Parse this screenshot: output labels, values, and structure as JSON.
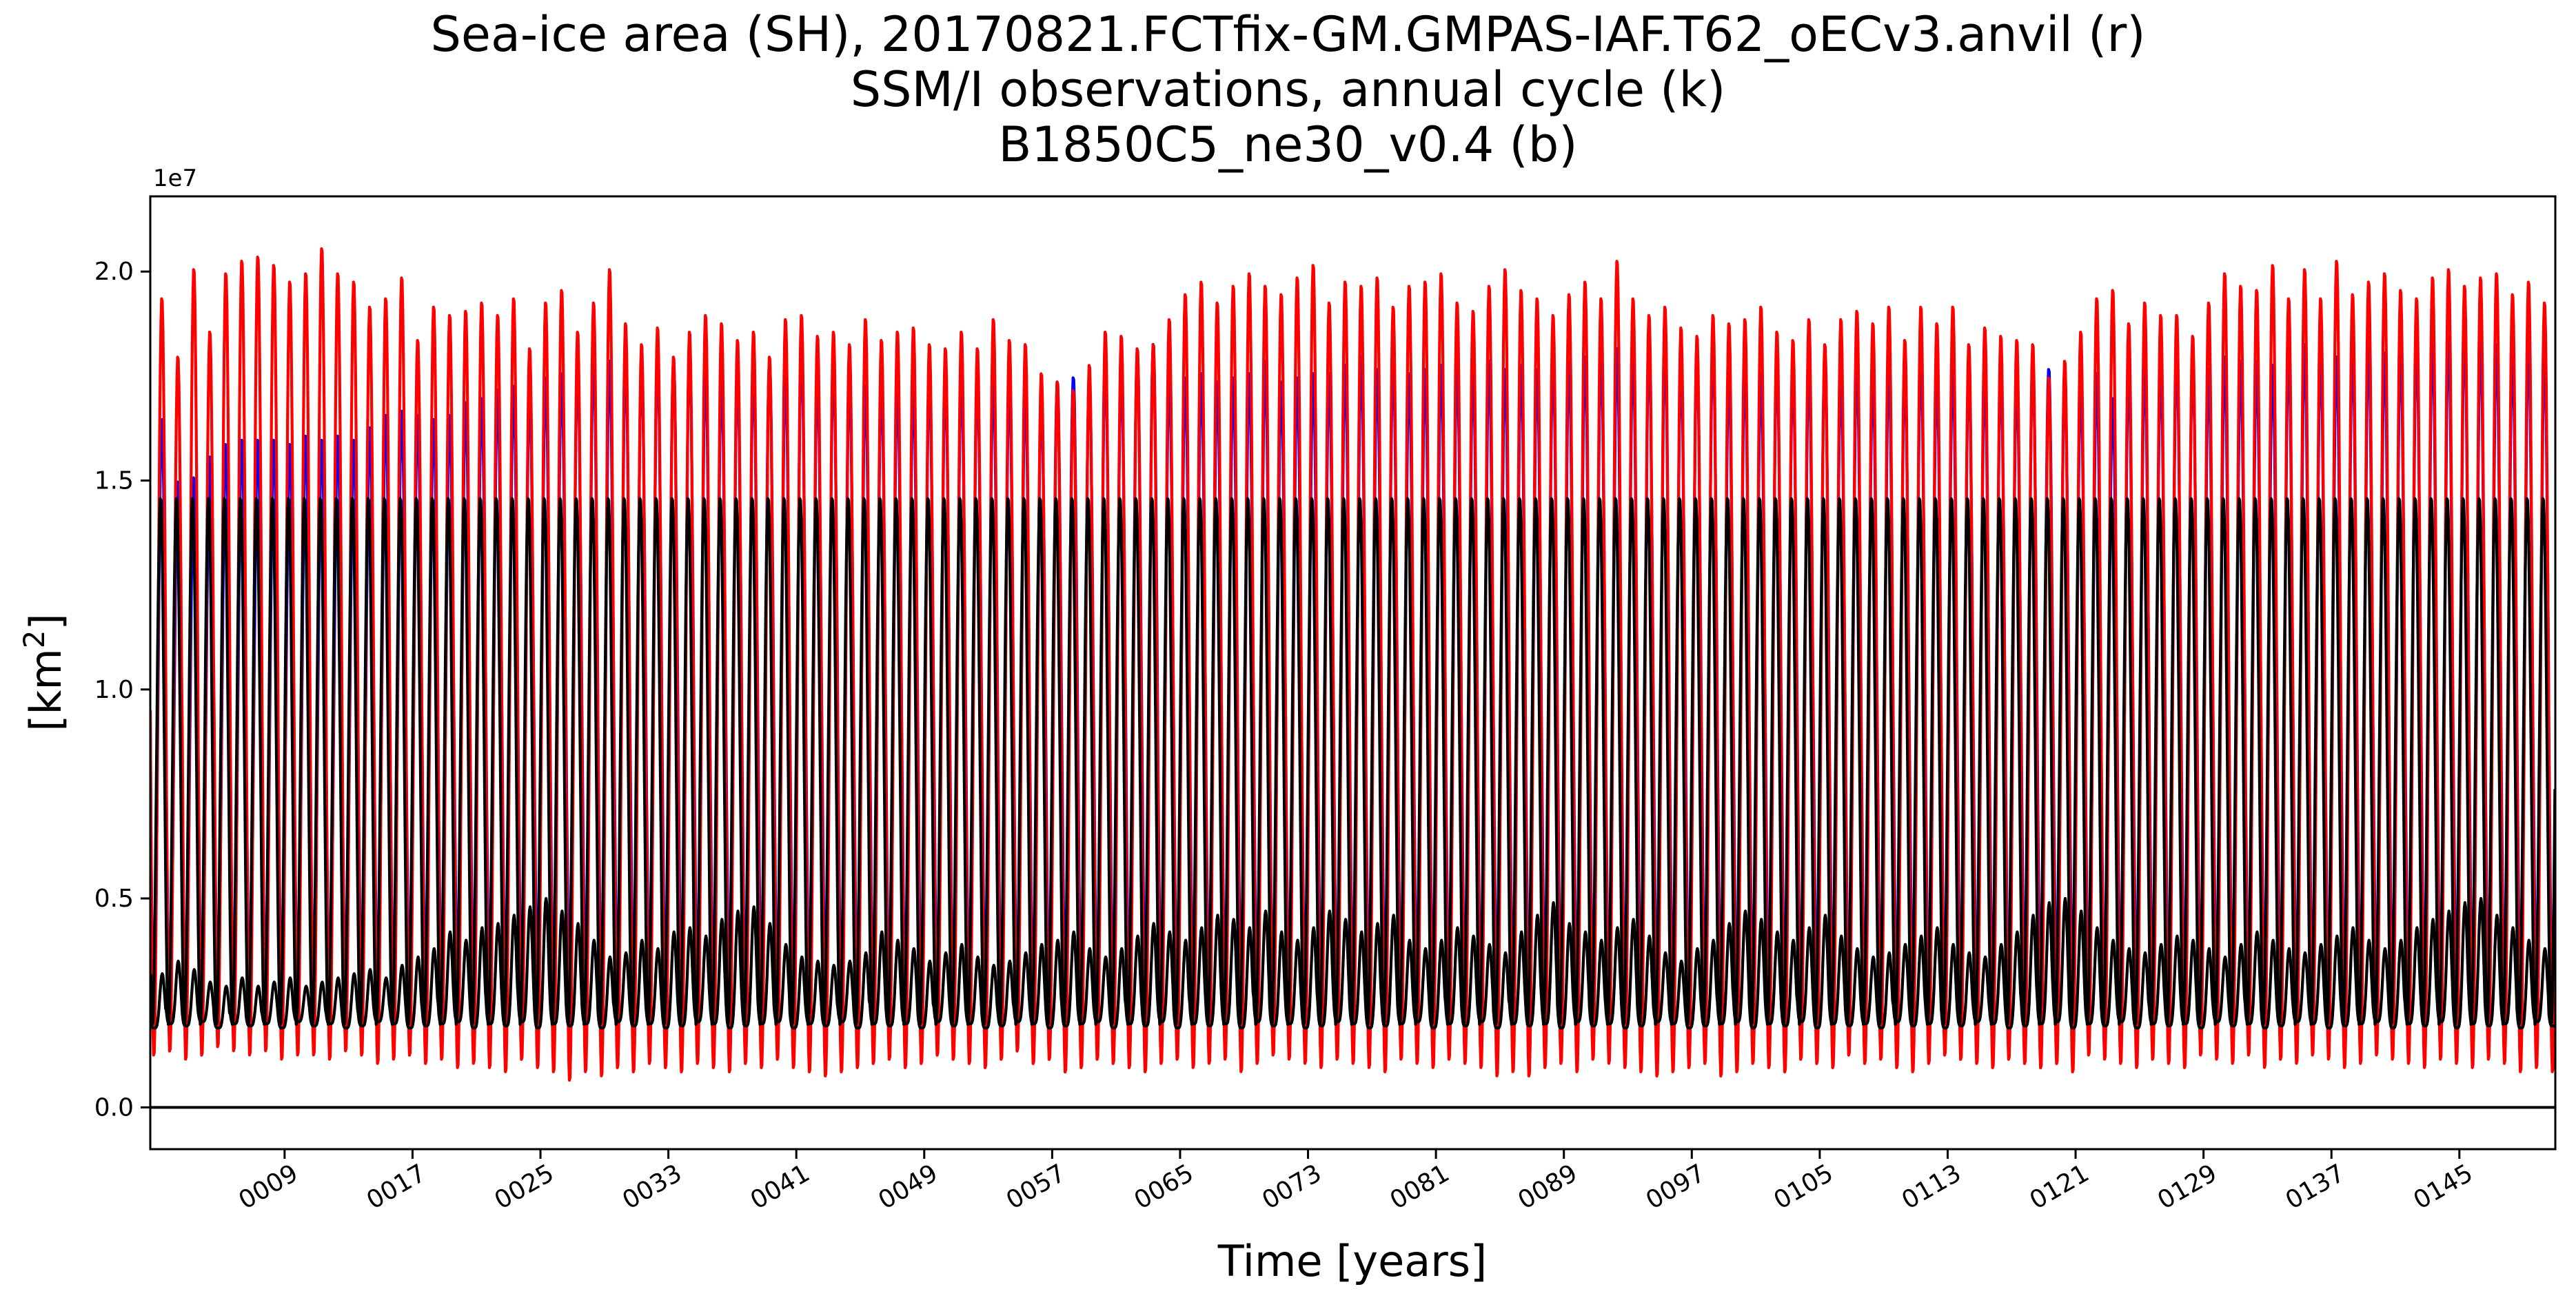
{
  "chart_data": {
    "type": "line",
    "title_lines": [
      "Sea-ice area (SH), 20170821.FCTfix-GM.GMPAS-IAF.T62_oECv3.anvil (r)",
      "SSM/I observations, annual cycle (k)",
      "B1850C5_ne30_v0.4 (b)"
    ],
    "xlabel": "Time [years]",
    "ylabel_base": "[km",
    "ylabel_sup": "2",
    "ylabel_end": "]",
    "y_offset_label": "1e7",
    "y_scale_factor": 10000000,
    "xlim": [
      0.6,
      151.0
    ],
    "ylim": [
      -1000000,
      21800000
    ],
    "x_ticks": [
      "0009",
      "0017",
      "0025",
      "0033",
      "0041",
      "0049",
      "0057",
      "0065",
      "0073",
      "0081",
      "0089",
      "0097",
      "0105",
      "0113",
      "0121",
      "0129",
      "0137",
      "0145"
    ],
    "x_tick_values": [
      9,
      17,
      25,
      33,
      41,
      49,
      57,
      65,
      73,
      81,
      89,
      97,
      105,
      113,
      121,
      129,
      137,
      145
    ],
    "y_ticks": [
      "0.0",
      "0.5",
      "1.0",
      "1.5",
      "2.0"
    ],
    "y_tick_values": [
      0,
      5000000,
      10000000,
      15000000,
      20000000
    ],
    "zero_line": 0,
    "grid": false,
    "series": [
      {
        "id": "b",
        "color": "#0000ff",
        "cycle": "model",
        "start_value": 9500000,
        "min_values": [
          2400000,
          2500000,
          2600000,
          2700000,
          2800000,
          2900000,
          2900000,
          2800000,
          2900000,
          2800000,
          2900000,
          2700000,
          2800000,
          2900000,
          2800000,
          2800000,
          2900000,
          3000000,
          2900000,
          3000000,
          3100000,
          3000000,
          2800000,
          2900000,
          3000000,
          2800000,
          2900000,
          3100000,
          2800000,
          2900000,
          3000000,
          2900000,
          2800000,
          3000000,
          2900000,
          2800000,
          2900000,
          2600000,
          2900000,
          2800000,
          2700000,
          2800000,
          2900000,
          2600000,
          2800000,
          2700000,
          2800000,
          2700000,
          2900000,
          2800000,
          2700000,
          2800000,
          2900000,
          2800000,
          2700000,
          2600000,
          2800000,
          2900000,
          2800000,
          2700000,
          2900000,
          2800000,
          3000000,
          2900000,
          2800000,
          3000000,
          2900000,
          2800000,
          2900000,
          2800000,
          2700000,
          2900000,
          2800000,
          3000000,
          2900000,
          2800000,
          2900000,
          2800000,
          2900000,
          3000000,
          2800000,
          2900000,
          2800000,
          2700000,
          2900000,
          2800000,
          2900000,
          3000000,
          2900000,
          2800000,
          2900000,
          2800000,
          2700000,
          2900000,
          2800000,
          2700000,
          2800000,
          2900000,
          2800000,
          2700000,
          2800000,
          2900000,
          2800000,
          2700000,
          2900000,
          2800000,
          2700000,
          2600000,
          2800000,
          2700000,
          2900000,
          2800000,
          2700000,
          2900000,
          2800000,
          2700000,
          2800000,
          2900000,
          2700000,
          2800000,
          2900000,
          2800000,
          2700000,
          2900000,
          2800000,
          2900000,
          2800000,
          2700000,
          2900000,
          2800000,
          2700000,
          2900000,
          2800000,
          2900000,
          2700000,
          2800000,
          2900000,
          2800000,
          2700000,
          2900000,
          2800000,
          2900000,
          2800000,
          2700000,
          2900000,
          2800000,
          2900000,
          2800000,
          2700000,
          2900000
        ],
        "max_values": [
          16500000,
          15000000,
          15100000,
          15600000,
          15900000,
          16000000,
          16000000,
          16000000,
          15900000,
          16100000,
          16000000,
          16100000,
          16000000,
          16300000,
          16600000,
          16700000,
          16600000,
          16500000,
          16600000,
          16900000,
          17000000,
          17200000,
          17300000,
          17200000,
          17500000,
          17600000,
          17800000,
          18000000,
          17900000,
          17900000,
          17800000,
          18000000,
          17900000,
          18100000,
          17700000,
          17500000,
          17600000,
          17700000,
          17900000,
          17600000,
          18200000,
          17500000,
          17800000,
          17500000,
          17300000,
          17400000,
          17300000,
          17300000,
          17500000,
          17500000,
          17600000,
          17500000,
          17500000,
          17400000,
          17200000,
          17000000,
          17400000,
          17500000,
          17500000,
          17900000,
          17700000,
          18100000,
          18300000,
          17600000,
          17500000,
          17600000,
          17400000,
          17500000,
          17600000,
          17900000,
          17400000,
          17500000,
          17600000,
          17600000,
          17800000,
          18000000,
          17700000,
          18000000,
          17600000,
          17700000,
          17800000,
          17800000,
          17700000,
          17900000,
          17700000,
          17800000,
          17700000,
          17900000,
          17900000,
          18000000,
          18100000,
          18200000,
          18100000,
          18200000,
          18200000,
          17800000,
          18000000,
          18300000,
          17600000,
          17800000,
          17600000,
          17900000,
          17700000,
          17800000,
          18000000,
          17600000,
          17900000,
          17600000,
          17800000,
          17700000,
          18000000,
          17600000,
          17800000,
          17700000,
          17600000,
          17700000,
          17500000,
          17900000,
          17700000,
          17500000,
          17400000,
          17600000,
          17000000,
          17700000,
          17900000,
          17800000,
          18100000,
          18000000,
          17700000,
          18000000,
          17900000,
          17900000,
          17800000,
          18200000,
          18300000,
          18100000,
          18000000,
          18200000,
          18300000,
          18100000,
          18200000,
          18300000,
          18400000,
          18500000,
          18600000,
          18400000,
          18300000,
          18100000,
          18300000,
          18000000,
          18200000,
          18100000
        ]
      },
      {
        "id": "r",
        "color": "#ff0000",
        "cycle": "model",
        "start_value": 9500000,
        "min_values": [
          1200000,
          1300000,
          1100000,
          1200000,
          1400000,
          1300000,
          1200000,
          1300000,
          1100000,
          1200000,
          1200000,
          1100000,
          1300000,
          1200000,
          1000000,
          1100000,
          1200000,
          1000000,
          1100000,
          900000,
          1000000,
          900000,
          800000,
          1100000,
          900000,
          800000,
          600000,
          800000,
          700000,
          900000,
          800000,
          1000000,
          900000,
          800000,
          1000000,
          900000,
          800000,
          1000000,
          900000,
          1100000,
          900000,
          800000,
          700000,
          800000,
          900000,
          1000000,
          1100000,
          900000,
          1000000,
          1200000,
          1100000,
          1000000,
          900000,
          1100000,
          1300000,
          1000000,
          1100000,
          800000,
          900000,
          1100000,
          1000000,
          900000,
          800000,
          1000000,
          1100000,
          900000,
          1000000,
          1100000,
          800000,
          1000000,
          1200000,
          1100000,
          1000000,
          900000,
          1100000,
          1000000,
          900000,
          800000,
          1100000,
          1000000,
          900000,
          1100000,
          1000000,
          900000,
          700000,
          800000,
          700000,
          900000,
          1000000,
          800000,
          1100000,
          1000000,
          900000,
          800000,
          700000,
          800000,
          900000,
          1000000,
          700000,
          800000,
          1000000,
          900000,
          800000,
          1100000,
          1000000,
          900000,
          1200000,
          1000000,
          1100000,
          900000,
          800000,
          1000000,
          1200000,
          1100000,
          1000000,
          900000,
          1100000,
          1000000,
          900000,
          1000000,
          800000,
          1200000,
          1100000,
          1000000,
          900000,
          1100000,
          1000000,
          900000,
          1200000,
          1100000,
          1000000,
          1200000,
          900000,
          1100000,
          1000000,
          1200000,
          1100000,
          900000,
          1000000,
          1200000,
          1100000,
          1000000,
          900000,
          1100000,
          1000000,
          900000,
          1100000,
          1000000,
          800000,
          900000,
          800000,
          700000
        ],
        "max_values": [
          19400000,
          18000000,
          20100000,
          18600000,
          20000000,
          20300000,
          20400000,
          20200000,
          19800000,
          20000000,
          20600000,
          20000000,
          19800000,
          19200000,
          19400000,
          19900000,
          18400000,
          19200000,
          19000000,
          19100000,
          19300000,
          19000000,
          19400000,
          18200000,
          19300000,
          19600000,
          18600000,
          19300000,
          20100000,
          18800000,
          18300000,
          18700000,
          18000000,
          18600000,
          19000000,
          18800000,
          18400000,
          18600000,
          18000000,
          18900000,
          19000000,
          18500000,
          18600000,
          18300000,
          18900000,
          18400000,
          18600000,
          18700000,
          18300000,
          18200000,
          18600000,
          18200000,
          18900000,
          18400000,
          18300000,
          17600000,
          17400000,
          17200000,
          17800000,
          18600000,
          18500000,
          18200000,
          18300000,
          18900000,
          19500000,
          19800000,
          19300000,
          19700000,
          20000000,
          19700000,
          19500000,
          19900000,
          20200000,
          19300000,
          19800000,
          19700000,
          19900000,
          19200000,
          19700000,
          19800000,
          20000000,
          19300000,
          19100000,
          19700000,
          20100000,
          19600000,
          19400000,
          19000000,
          19500000,
          19800000,
          19400000,
          20300000,
          19400000,
          19000000,
          19200000,
          18700000,
          18500000,
          19000000,
          18800000,
          18900000,
          19200000,
          18600000,
          18400000,
          18900000,
          18300000,
          18900000,
          19100000,
          18800000,
          19200000,
          18400000,
          19200000,
          18800000,
          19200000,
          18300000,
          18700000,
          18500000,
          18400000,
          18300000,
          17500000,
          17900000,
          18600000,
          19400000,
          19600000,
          18800000,
          19300000,
          19000000,
          19000000,
          18500000,
          19300000,
          20000000,
          19700000,
          19600000,
          20200000,
          19400000,
          20100000,
          19400000,
          20300000,
          19500000,
          19800000,
          20000000,
          19600000,
          19400000,
          19900000,
          20100000,
          19700000,
          19900000,
          20000000,
          19500000,
          19800000,
          19300000,
          19500000,
          19200000
        ]
      },
      {
        "id": "k",
        "color": "#000000",
        "cycle": "obs",
        "start_value": 2000000,
        "min_values": [
          1950000
        ],
        "max_values": [
          14600000
        ]
      },
      {
        "id": "b",
        "color": "#000000",
        "cycle": "lowblack",
        "start_value": 2000000,
        "min_values": [
          1900000,
          2000000,
          1950000,
          2050000,
          1900000,
          2000000,
          1950000,
          2000000,
          1900000,
          2050000,
          1950000,
          2000000,
          1900000,
          1950000,
          2050000,
          2000000,
          1900000,
          1950000,
          2000000,
          2050000
        ],
        "max_values": [
          3200000,
          3500000,
          3300000,
          3000000,
          2900000,
          3100000,
          2900000,
          3000000,
          3100000,
          2900000,
          3000000,
          3100000,
          3200000,
          3300000,
          3100000,
          3400000,
          3600000,
          3800000,
          4200000,
          4000000,
          4300000,
          4400000,
          4600000,
          4800000,
          5000000,
          4700000,
          4400000,
          4000000,
          3600000,
          3700000,
          4000000,
          3800000,
          4200000,
          4300000,
          4100000,
          4500000,
          4700000,
          4800000,
          4400000,
          3900000,
          3600000,
          3500000,
          3400000,
          3500000,
          3700000,
          4200000,
          4000000,
          3800000,
          3500000,
          3700000,
          3900000,
          3600000,
          3400000,
          3500000,
          3700000,
          3900000,
          4000000,
          4200000,
          3800000,
          3600000,
          3800000,
          4100000,
          4400000,
          4200000,
          4000000,
          4300000,
          4600000,
          4500000,
          4300000,
          4700000,
          4200000,
          4000000,
          4300000,
          4700000,
          4500000,
          4200000,
          4400000,
          4600000,
          4000000,
          3800000,
          4000000,
          4300000,
          4100000,
          3900000,
          3700000,
          4200000,
          4600000,
          4900000,
          4400000,
          4200000,
          4000000,
          4300000,
          4500000,
          4100000,
          3700000,
          3500000,
          3800000,
          4000000,
          4400000,
          4700000,
          4500000,
          4200000,
          4000000,
          4300000,
          4600000,
          4100000,
          3800000,
          3600000,
          3700000,
          3900000,
          4100000,
          4300000,
          3900000,
          3700000,
          3600000,
          3900000,
          4200000,
          4600000,
          4900000,
          5000000,
          4700000,
          4300000,
          4000000,
          3800000,
          3700000,
          3900000,
          4100000,
          4000000,
          3800000,
          3600000,
          3900000,
          4200000,
          4000000,
          3800000,
          3700000,
          3900000,
          4100000,
          4300000,
          4000000,
          3800000,
          4000000,
          4300000,
          4500000,
          4700000,
          4900000,
          5000000,
          4600000,
          4300000,
          4000000,
          3800000
        ]
      }
    ]
  }
}
